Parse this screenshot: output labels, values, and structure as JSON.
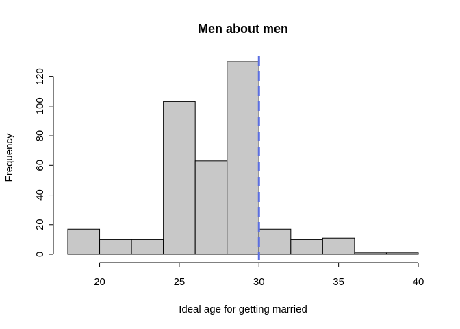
{
  "chart_data": {
    "type": "bar",
    "title": "Men about men",
    "xlabel": "Ideal age for getting married",
    "ylabel": "Frequency",
    "bins": [
      {
        "start": 18,
        "end": 20,
        "count": 17
      },
      {
        "start": 20,
        "end": 22,
        "count": 10
      },
      {
        "start": 22,
        "end": 24,
        "count": 10
      },
      {
        "start": 24,
        "end": 26,
        "count": 103
      },
      {
        "start": 26,
        "end": 28,
        "count": 63
      },
      {
        "start": 28,
        "end": 30,
        "count": 130
      },
      {
        "start": 30,
        "end": 32,
        "count": 17
      },
      {
        "start": 32,
        "end": 34,
        "count": 10
      },
      {
        "start": 34,
        "end": 36,
        "count": 11
      },
      {
        "start": 36,
        "end": 38,
        "count": 1
      },
      {
        "start": 38,
        "end": 40,
        "count": 1
      }
    ],
    "xlim": [
      18,
      40
    ],
    "ylim": [
      0,
      130
    ],
    "x_ticks": [
      20,
      25,
      30,
      35,
      40
    ],
    "y_ticks": [
      0,
      20,
      40,
      60,
      80,
      100,
      120
    ],
    "reference_line": {
      "x": 30,
      "style": "dashed",
      "color": "#5b6ee1"
    },
    "grid": false,
    "bar_color": "#c8c8c8"
  }
}
